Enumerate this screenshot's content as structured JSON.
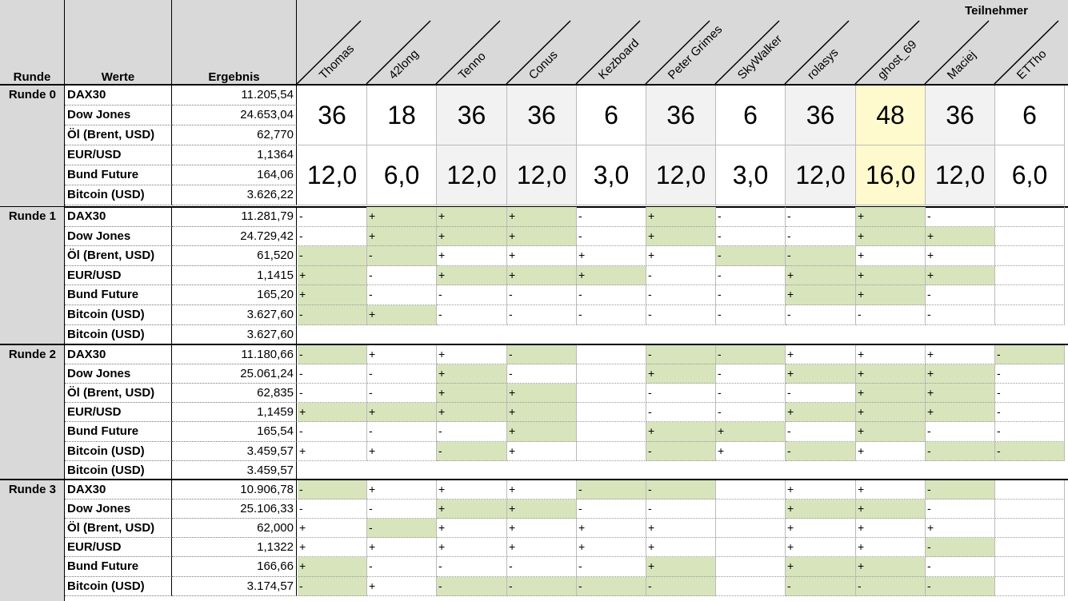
{
  "header": {
    "runde": "Runde",
    "werte": "Werte",
    "ergebnis": "Ergebnis",
    "teilnehmer": "Teilnehmer"
  },
  "participants": [
    "Thomas",
    "42long",
    "Tenno",
    "Conus",
    "Kezboard",
    "Peter Grimes",
    "SkyWalker",
    "rolasys",
    "ghost_69",
    "Maciej",
    "ETTho"
  ],
  "round0": {
    "label": "Runde 0",
    "rows": [
      {
        "werte": "DAX30",
        "ergebnis": "11.205,54"
      },
      {
        "werte": "Dow Jones",
        "ergebnis": "24.653,04"
      },
      {
        "werte": "Öl (Brent, USD)",
        "ergebnis": "62,770"
      },
      {
        "werte": "EUR/USD",
        "ergebnis": "1,1364"
      },
      {
        "werte": "Bund Future",
        "ergebnis": "164,06"
      },
      {
        "werte": "Bitcoin (USD)",
        "ergebnis": "3.626,22"
      }
    ],
    "scores": [
      "36",
      "18",
      "36",
      "36",
      "6",
      "36",
      "6",
      "36",
      "48",
      "36",
      "6"
    ],
    "ratings": [
      "12,0",
      "6,0",
      "12,0",
      "12,0",
      "3,0",
      "12,0",
      "3,0",
      "12,0",
      "16,0",
      "12,0",
      "6,0"
    ],
    "score_bg": [
      "w",
      "w",
      "l",
      "l",
      "w",
      "l",
      "w",
      "l",
      "y",
      "l",
      "w"
    ],
    "rating_bg": [
      "w",
      "w",
      "l",
      "l",
      "w",
      "l",
      "w",
      "l",
      "y",
      "l",
      "w"
    ]
  },
  "rounds": [
    {
      "label": "Runde 1",
      "rows": [
        {
          "werte": "DAX30",
          "ergebnis": "11.281,79",
          "marks": [
            "-",
            "+",
            "+",
            "+",
            "-",
            "+",
            "-",
            "-",
            "+",
            "-",
            ""
          ],
          "green": [
            0,
            1,
            1,
            1,
            0,
            1,
            0,
            0,
            1,
            0,
            0
          ]
        },
        {
          "werte": "Dow Jones",
          "ergebnis": "24.729,42",
          "marks": [
            "-",
            "+",
            "+",
            "+",
            "-",
            "+",
            "-",
            "-",
            "+",
            "+",
            ""
          ],
          "green": [
            0,
            1,
            1,
            1,
            0,
            1,
            0,
            0,
            1,
            1,
            0
          ]
        },
        {
          "werte": "Öl (Brent, USD)",
          "ergebnis": "61,520",
          "marks": [
            "-",
            "-",
            "+",
            "+",
            "+",
            "+",
            "-",
            "-",
            "+",
            "+",
            ""
          ],
          "green": [
            1,
            1,
            0,
            0,
            0,
            0,
            1,
            1,
            0,
            0,
            0
          ]
        },
        {
          "werte": "EUR/USD",
          "ergebnis": "1,1415",
          "marks": [
            "+",
            "-",
            "+",
            "+",
            "+",
            "-",
            "-",
            "+",
            "+",
            "+",
            ""
          ],
          "green": [
            1,
            0,
            1,
            1,
            1,
            0,
            0,
            1,
            1,
            1,
            0
          ]
        },
        {
          "werte": "Bund Future",
          "ergebnis": "165,20",
          "marks": [
            "+",
            "-",
            "-",
            "-",
            "-",
            "-",
            "-",
            "+",
            "+",
            "-",
            ""
          ],
          "green": [
            1,
            0,
            0,
            0,
            0,
            0,
            0,
            1,
            1,
            0,
            0
          ]
        },
        {
          "werte": "Bitcoin (USD)",
          "ergebnis": "3.627,60",
          "marks": [
            "-",
            "+",
            "-",
            "-",
            "-",
            "-",
            "-",
            "-",
            "-",
            "-",
            ""
          ],
          "green": [
            1,
            1,
            0,
            0,
            0,
            0,
            0,
            0,
            0,
            0,
            0
          ]
        },
        {
          "werte": "Bitcoin (USD)",
          "ergebnis": "3.627,60",
          "summary": true
        }
      ]
    },
    {
      "label": "Runde 2",
      "rows": [
        {
          "werte": "DAX30",
          "ergebnis": "11.180,66",
          "marks": [
            "-",
            "+",
            "+",
            "-",
            "",
            "-",
            "-",
            "+",
            "+",
            "+",
            "-"
          ],
          "green": [
            1,
            0,
            0,
            1,
            0,
            1,
            1,
            0,
            0,
            0,
            1
          ]
        },
        {
          "werte": "Dow Jones",
          "ergebnis": "25.061,24",
          "marks": [
            "-",
            "-",
            "+",
            "-",
            "",
            "+",
            "-",
            "+",
            "+",
            "+",
            "-"
          ],
          "green": [
            0,
            0,
            1,
            0,
            0,
            1,
            0,
            1,
            1,
            1,
            0
          ]
        },
        {
          "werte": "Öl (Brent, USD)",
          "ergebnis": "62,835",
          "marks": [
            "-",
            "-",
            "+",
            "+",
            "",
            "-",
            "-",
            "-",
            "+",
            "+",
            "-"
          ],
          "green": [
            0,
            0,
            1,
            1,
            0,
            0,
            0,
            0,
            1,
            1,
            0
          ]
        },
        {
          "werte": "EUR/USD",
          "ergebnis": "1,1459",
          "marks": [
            "+",
            "+",
            "+",
            "+",
            "",
            "-",
            "-",
            "+",
            "+",
            "+",
            "-"
          ],
          "green": [
            1,
            1,
            1,
            1,
            0,
            0,
            0,
            1,
            1,
            1,
            0
          ]
        },
        {
          "werte": "Bund Future",
          "ergebnis": "165,54",
          "marks": [
            "-",
            "-",
            "-",
            "+",
            "",
            "+",
            "+",
            "-",
            "+",
            "-",
            "-"
          ],
          "green": [
            0,
            0,
            0,
            1,
            0,
            1,
            1,
            0,
            1,
            0,
            0
          ]
        },
        {
          "werte": "Bitcoin (USD)",
          "ergebnis": "3.459,57",
          "marks": [
            "+",
            "+",
            "-",
            "+",
            "",
            "-",
            "+",
            "-",
            "+",
            "-",
            "-"
          ],
          "green": [
            0,
            0,
            1,
            0,
            0,
            1,
            0,
            1,
            0,
            1,
            1
          ]
        },
        {
          "werte": "Bitcoin (USD)",
          "ergebnis": "3.459,57",
          "summary": true
        }
      ]
    },
    {
      "label": "Runde 3",
      "rows": [
        {
          "werte": "DAX30",
          "ergebnis": "10.906,78",
          "marks": [
            "-",
            "+",
            "+",
            "+",
            "-",
            "-",
            "",
            "+",
            "+",
            "-",
            ""
          ],
          "green": [
            1,
            0,
            0,
            0,
            1,
            1,
            0,
            0,
            0,
            1,
            0
          ]
        },
        {
          "werte": "Dow Jones",
          "ergebnis": "25.106,33",
          "marks": [
            "-",
            "-",
            "+",
            "+",
            "-",
            "-",
            "",
            "+",
            "+",
            "-",
            ""
          ],
          "green": [
            0,
            0,
            1,
            1,
            0,
            0,
            0,
            1,
            1,
            0,
            0
          ]
        },
        {
          "werte": "Öl (Brent, USD)",
          "ergebnis": "62,000",
          "marks": [
            "+",
            "-",
            "+",
            "+",
            "+",
            "+",
            "",
            "+",
            "+",
            "+",
            ""
          ],
          "green": [
            0,
            1,
            0,
            0,
            0,
            0,
            0,
            0,
            0,
            0,
            0
          ]
        },
        {
          "werte": "EUR/USD",
          "ergebnis": "1,1322",
          "marks": [
            "+",
            "+",
            "+",
            "+",
            "+",
            "+",
            "",
            "+",
            "+",
            "-",
            ""
          ],
          "green": [
            0,
            0,
            0,
            0,
            0,
            0,
            0,
            0,
            0,
            1,
            0
          ]
        },
        {
          "werte": "Bund Future",
          "ergebnis": "166,66",
          "marks": [
            "+",
            "-",
            "-",
            "-",
            "-",
            "+",
            "",
            "+",
            "+",
            "-",
            ""
          ],
          "green": [
            1,
            0,
            0,
            0,
            0,
            1,
            0,
            1,
            1,
            0,
            0
          ]
        },
        {
          "werte": "Bitcoin (USD)",
          "ergebnis": "3.174,57",
          "marks": [
            "-",
            "+",
            "-",
            "-",
            "-",
            "-",
            "",
            "-",
            "-",
            "-",
            ""
          ],
          "green": [
            1,
            0,
            1,
            1,
            1,
            1,
            0,
            1,
            1,
            1,
            0
          ]
        }
      ]
    }
  ],
  "colors": {
    "header_bg": "#d9d9d9",
    "green": "#d8e4bc",
    "highlight": "#fffacd"
  }
}
